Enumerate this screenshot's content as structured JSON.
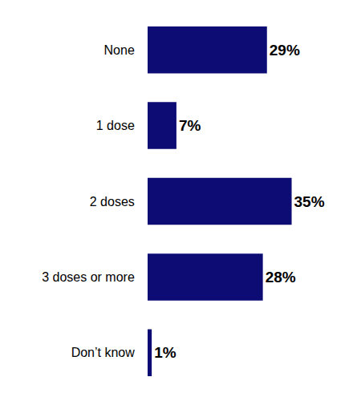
{
  "chart_data": {
    "type": "bar",
    "orientation": "horizontal",
    "categories": [
      "None",
      "1 dose",
      "2 doses",
      "3 doses or more",
      "Don’t know"
    ],
    "values": [
      29,
      7,
      35,
      28,
      1
    ],
    "value_labels": [
      "29%",
      "7%",
      "35%",
      "28%",
      "1%"
    ],
    "color": "#0c0c74",
    "data_labels": true,
    "tick_labels": "y",
    "grid": false
  }
}
